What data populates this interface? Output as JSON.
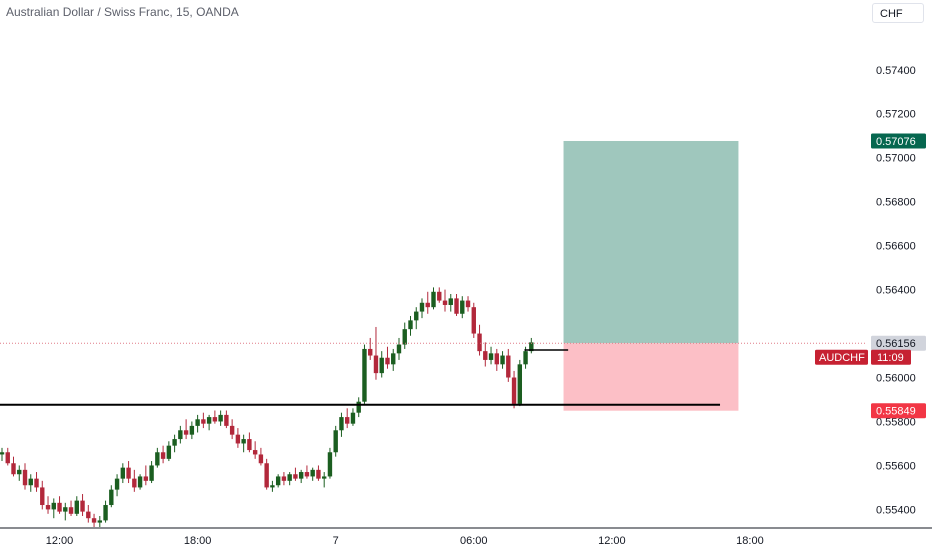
{
  "header": {
    "title": "Australian Dollar / Swiss Franc, 15, OANDA",
    "currency": "CHF"
  },
  "colors": {
    "up": "#1b5e20",
    "down": "#b2283b",
    "profit_zone": "#9fc7bd",
    "loss_zone": "#fcbfc6",
    "target_tag": "#06674f",
    "stop_tag": "#f23645",
    "price_tag": "#c62132",
    "price_line": "#e07b87"
  },
  "chart_data": {
    "type": "candlestick",
    "symbol": "AUDCHF",
    "ylim": [
      0.5532,
      0.5759
    ],
    "x_range_hours": [
      9.5,
      46
    ],
    "y_ticks": [
      {
        "value": 0.574,
        "label": "0.57400"
      },
      {
        "value": 0.572,
        "label": "0.57200"
      },
      {
        "value": 0.57,
        "label": "0.57000"
      },
      {
        "value": 0.568,
        "label": "0.56800"
      },
      {
        "value": 0.566,
        "label": "0.56600"
      },
      {
        "value": 0.564,
        "label": "0.56400"
      },
      {
        "value": 0.56,
        "label": "0.56000"
      },
      {
        "value": 0.558,
        "label": "0.55800"
      },
      {
        "value": 0.556,
        "label": "0.55600"
      },
      {
        "value": 0.554,
        "label": "0.55400"
      }
    ],
    "x_ticks": [
      {
        "hour": 12,
        "label": "12:00"
      },
      {
        "hour": 18,
        "label": "18:00"
      },
      {
        "hour": 24,
        "label": "7"
      },
      {
        "hour": 30,
        "label": "06:00"
      },
      {
        "hour": 36,
        "label": "12:00"
      },
      {
        "hour": 42,
        "label": "18:00"
      }
    ],
    "price_tags": {
      "target": {
        "value": 0.57076,
        "label": "0.57076"
      },
      "current": {
        "value": 0.56156,
        "label": "0.56156"
      },
      "symbol_label": "AUDCHF",
      "countdown": "11:09",
      "stop": {
        "value": 0.55849,
        "label": "0.55849"
      }
    },
    "horizontal_line": {
      "value": 0.55876,
      "x_end_hour": 40.7
    },
    "small_line": {
      "value": 0.56125,
      "x_start_hour": 32.2,
      "x_end_hour": 34.1
    },
    "position": {
      "entry": 0.56156,
      "target": 0.57076,
      "stop": 0.55849,
      "x_start_hour": 33.9,
      "x_end_hour": 41.5
    },
    "candles": [
      [
        9.5,
        0.5565,
        0.5568,
        0.5562,
        0.5566
      ],
      [
        9.75,
        0.5566,
        0.5568,
        0.556,
        0.5561
      ],
      [
        10.0,
        0.5561,
        0.5564,
        0.5555,
        0.5556
      ],
      [
        10.25,
        0.5556,
        0.556,
        0.5553,
        0.5558
      ],
      [
        10.5,
        0.5558,
        0.5561,
        0.5549,
        0.5551
      ],
      [
        10.75,
        0.5551,
        0.5556,
        0.5548,
        0.5554
      ],
      [
        11.0,
        0.5554,
        0.5557,
        0.5548,
        0.555
      ],
      [
        11.25,
        0.555,
        0.5553,
        0.554,
        0.5542
      ],
      [
        11.5,
        0.5542,
        0.5546,
        0.5538,
        0.554
      ],
      [
        11.75,
        0.554,
        0.5545,
        0.5536,
        0.5543
      ],
      [
        12.0,
        0.5543,
        0.5546,
        0.5538,
        0.5539
      ],
      [
        12.25,
        0.5539,
        0.5543,
        0.5535,
        0.5541
      ],
      [
        12.5,
        0.5541,
        0.5544,
        0.5537,
        0.5538
      ],
      [
        12.75,
        0.5538,
        0.5546,
        0.5537,
        0.5544
      ],
      [
        13.0,
        0.5544,
        0.5547,
        0.5537,
        0.5539
      ],
      [
        13.25,
        0.5539,
        0.5542,
        0.5534,
        0.5536
      ],
      [
        13.5,
        0.5536,
        0.5538,
        0.5532,
        0.5534
      ],
      [
        13.75,
        0.5534,
        0.5537,
        0.5532,
        0.5535
      ],
      [
        14.0,
        0.5535,
        0.5544,
        0.5534,
        0.5542
      ],
      [
        14.25,
        0.5542,
        0.5551,
        0.5541,
        0.5549
      ],
      [
        14.5,
        0.5549,
        0.5556,
        0.5546,
        0.5554
      ],
      [
        14.75,
        0.5554,
        0.5561,
        0.5552,
        0.5559
      ],
      [
        15.0,
        0.5559,
        0.5562,
        0.5552,
        0.5554
      ],
      [
        15.25,
        0.5554,
        0.5558,
        0.5548,
        0.555
      ],
      [
        15.5,
        0.555,
        0.5556,
        0.5549,
        0.5555
      ],
      [
        15.75,
        0.5555,
        0.556,
        0.5551,
        0.5553
      ],
      [
        16.0,
        0.5553,
        0.5562,
        0.5552,
        0.556
      ],
      [
        16.25,
        0.556,
        0.5568,
        0.5559,
        0.5566
      ],
      [
        16.5,
        0.5566,
        0.5569,
        0.5561,
        0.5563
      ],
      [
        16.75,
        0.5563,
        0.5571,
        0.5562,
        0.5569
      ],
      [
        17.0,
        0.5569,
        0.5574,
        0.5566,
        0.5572
      ],
      [
        17.25,
        0.5572,
        0.5578,
        0.557,
        0.5576
      ],
      [
        17.5,
        0.5576,
        0.5581,
        0.5572,
        0.5574
      ],
      [
        17.75,
        0.5574,
        0.558,
        0.5572,
        0.5578
      ],
      [
        18.0,
        0.5578,
        0.5583,
        0.5575,
        0.5581
      ],
      [
        18.25,
        0.5581,
        0.5584,
        0.5577,
        0.5579
      ],
      [
        18.5,
        0.5579,
        0.5583,
        0.5576,
        0.5582
      ],
      [
        18.75,
        0.5582,
        0.5585,
        0.5579,
        0.558
      ],
      [
        19.0,
        0.558,
        0.5585,
        0.5578,
        0.5583
      ],
      [
        19.25,
        0.5583,
        0.5585,
        0.5577,
        0.5578
      ],
      [
        19.5,
        0.5578,
        0.5581,
        0.5572,
        0.5574
      ],
      [
        19.75,
        0.5574,
        0.5577,
        0.5568,
        0.557
      ],
      [
        20.0,
        0.557,
        0.5574,
        0.5566,
        0.5572
      ],
      [
        20.25,
        0.5572,
        0.5575,
        0.5566,
        0.5567
      ],
      [
        20.5,
        0.5567,
        0.5571,
        0.5563,
        0.5565
      ],
      [
        20.75,
        0.5565,
        0.5568,
        0.556,
        0.5561
      ],
      [
        21.0,
        0.5561,
        0.5563,
        0.5549,
        0.555
      ],
      [
        21.25,
        0.555,
        0.5553,
        0.5548,
        0.5551
      ],
      [
        21.5,
        0.5551,
        0.5556,
        0.555,
        0.5555
      ],
      [
        21.75,
        0.5555,
        0.5557,
        0.5551,
        0.5553
      ],
      [
        22.0,
        0.5553,
        0.5557,
        0.5551,
        0.5556
      ],
      [
        22.25,
        0.5556,
        0.5559,
        0.5553,
        0.5554
      ],
      [
        22.5,
        0.5554,
        0.5558,
        0.5552,
        0.5557
      ],
      [
        22.75,
        0.5557,
        0.556,
        0.5554,
        0.5555
      ],
      [
        23.0,
        0.5555,
        0.5559,
        0.5553,
        0.5558
      ],
      [
        23.25,
        0.5558,
        0.556,
        0.5553,
        0.5554
      ],
      [
        23.5,
        0.5554,
        0.5557,
        0.555,
        0.5555
      ],
      [
        23.75,
        0.5555,
        0.5568,
        0.5554,
        0.5566
      ],
      [
        24.0,
        0.5566,
        0.5578,
        0.5564,
        0.5576
      ],
      [
        24.25,
        0.5576,
        0.5584,
        0.5573,
        0.5582
      ],
      [
        24.5,
        0.5582,
        0.5586,
        0.5577,
        0.5579
      ],
      [
        24.75,
        0.5579,
        0.5586,
        0.5578,
        0.5584
      ],
      [
        25.0,
        0.5584,
        0.5591,
        0.5582,
        0.5589
      ],
      [
        25.25,
        0.5589,
        0.5615,
        0.5588,
        0.5613
      ],
      [
        25.5,
        0.5613,
        0.5618,
        0.5608,
        0.561
      ],
      [
        25.75,
        0.561,
        0.5623,
        0.5599,
        0.5602
      ],
      [
        26.0,
        0.5602,
        0.5612,
        0.56,
        0.5609
      ],
      [
        26.25,
        0.5609,
        0.5614,
        0.5604,
        0.5606
      ],
      [
        26.5,
        0.5606,
        0.5613,
        0.5603,
        0.5611
      ],
      [
        26.75,
        0.5611,
        0.5618,
        0.5608,
        0.5615
      ],
      [
        27.0,
        0.5615,
        0.5625,
        0.5613,
        0.5622
      ],
      [
        27.25,
        0.5622,
        0.5628,
        0.5619,
        0.5626
      ],
      [
        27.5,
        0.5626,
        0.5632,
        0.5622,
        0.563
      ],
      [
        27.75,
        0.563,
        0.5636,
        0.5627,
        0.5634
      ],
      [
        28.0,
        0.5634,
        0.5639,
        0.5629,
        0.5632
      ],
      [
        28.25,
        0.5632,
        0.5641,
        0.5631,
        0.5639
      ],
      [
        28.5,
        0.5639,
        0.5641,
        0.5634,
        0.5635
      ],
      [
        28.75,
        0.5635,
        0.564,
        0.563,
        0.5633
      ],
      [
        29.0,
        0.5633,
        0.5638,
        0.563,
        0.5636
      ],
      [
        29.25,
        0.5636,
        0.5638,
        0.5628,
        0.5629
      ],
      [
        29.5,
        0.5629,
        0.5637,
        0.5627,
        0.5635
      ],
      [
        29.75,
        0.5635,
        0.5637,
        0.563,
        0.5632
      ],
      [
        30.0,
        0.5632,
        0.5634,
        0.5618,
        0.562
      ],
      [
        30.25,
        0.562,
        0.5624,
        0.561,
        0.5612
      ],
      [
        30.5,
        0.5612,
        0.5616,
        0.5605,
        0.5608
      ],
      [
        30.75,
        0.5608,
        0.5614,
        0.5606,
        0.5611
      ],
      [
        31.0,
        0.5611,
        0.5613,
        0.5603,
        0.5606
      ],
      [
        31.25,
        0.5606,
        0.5612,
        0.5604,
        0.561
      ],
      [
        31.5,
        0.561,
        0.5613,
        0.5598,
        0.56
      ],
      [
        31.75,
        0.56,
        0.5603,
        0.5586,
        0.5588
      ],
      [
        32.0,
        0.5588,
        0.5608,
        0.5587,
        0.5606
      ],
      [
        32.25,
        0.5606,
        0.5614,
        0.5604,
        0.5612
      ],
      [
        32.5,
        0.5612,
        0.5618,
        0.5611,
        0.5616
      ]
    ]
  }
}
